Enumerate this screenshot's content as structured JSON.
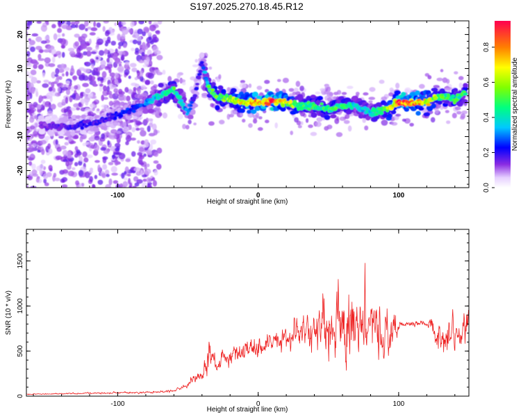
{
  "title": "S197.2025.270.18.45.R12",
  "chart_data": [
    {
      "type": "heatmap",
      "xlabel": "Height of straight line (km)",
      "ylabel": "Frequency (Hz)",
      "xlim": [
        -165,
        150
      ],
      "ylim": [
        -25,
        24
      ],
      "xticks": [
        -100,
        0,
        100
      ],
      "yticks": [
        -20,
        -10,
        0,
        10,
        20
      ],
      "colorbar": {
        "label": "Normalized spectral amplitude",
        "range": [
          0,
          0.95
        ],
        "ticks": [
          0.0,
          0.2,
          0.4,
          0.6,
          0.8
        ]
      },
      "ridge": {
        "description": "dominant frequency track (Hz) vs height (km)",
        "x": [
          -150,
          -130,
          -110,
          -90,
          -80,
          -70,
          -60,
          -50,
          -45,
          -40,
          -35,
          -30,
          -20,
          -10,
          0,
          10,
          20,
          30,
          40,
          50,
          60,
          70,
          80,
          90,
          100,
          110,
          120,
          130,
          140,
          148
        ],
        "y": [
          -7,
          -7,
          -5,
          -2,
          0,
          2,
          4,
          -3,
          2,
          12,
          4,
          2,
          1,
          0,
          0,
          0.5,
          0,
          -1,
          -1,
          -2,
          -1,
          -1,
          -3,
          -2,
          0,
          0,
          0,
          2,
          1,
          3
        ],
        "amplitude": [
          0.15,
          0.2,
          0.2,
          0.25,
          0.3,
          0.4,
          0.5,
          0.3,
          0.2,
          0.2,
          0.5,
          0.55,
          0.6,
          0.75,
          0.8,
          0.9,
          0.7,
          0.5,
          0.5,
          0.5,
          0.5,
          0.4,
          0.4,
          0.5,
          0.9,
          0.85,
          0.7,
          0.55,
          0.5,
          0.5
        ]
      }
    },
    {
      "type": "line",
      "xlabel": "Height of straight line (km)",
      "ylabel": "SNR (10 * v/v)",
      "xlim": [
        -165,
        150
      ],
      "ylim": [
        0,
        1850
      ],
      "xticks": [
        -100,
        0,
        100
      ],
      "yticks": [
        0,
        500,
        1000,
        1500
      ],
      "color": "#ee2222",
      "series": [
        {
          "name": "SNR",
          "envelope": {
            "description": "approximate mean level and fluctuation amplitude vs height (km)",
            "x": [
              -165,
              -130,
              -100,
              -80,
              -60,
              -50,
              -40,
              -35,
              -30,
              -25,
              -20,
              -10,
              0,
              10,
              20,
              30,
              40,
              50,
              60,
              70,
              80,
              90,
              98,
              100,
              110,
              120,
              125,
              130,
              140,
              150
            ],
            "mean": [
              20,
              30,
              40,
              40,
              60,
              120,
              250,
              500,
              300,
              450,
              450,
              500,
              550,
              600,
              650,
              700,
              750,
              750,
              750,
              750,
              750,
              700,
              700,
              800,
              800,
              800,
              750,
              650,
              700,
              800
            ],
            "amp": [
              10,
              15,
              20,
              20,
              30,
              60,
              120,
              350,
              120,
              200,
              200,
              250,
              250,
              250,
              300,
              350,
              500,
              650,
              800,
              700,
              600,
              600,
              550,
              100,
              60,
              60,
              250,
              400,
              450,
              400
            ]
          }
        }
      ]
    }
  ]
}
